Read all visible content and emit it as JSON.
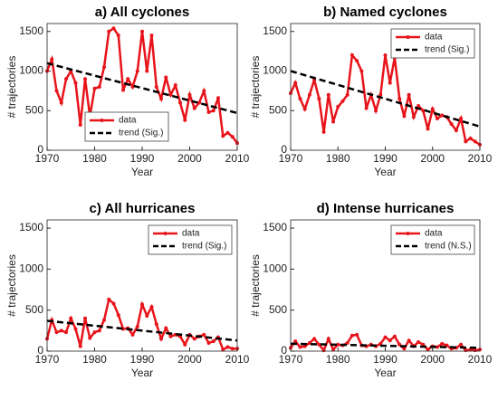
{
  "chart_data": [
    {
      "type": "line",
      "title": "a) All cyclones",
      "x_label": "Year",
      "y_label": "# trajectories",
      "x": [
        1970,
        1971,
        1972,
        1973,
        1974,
        1975,
        1976,
        1977,
        1978,
        1979,
        1980,
        1981,
        1982,
        1983,
        1984,
        1985,
        1986,
        1987,
        1988,
        1989,
        1990,
        1991,
        1992,
        1993,
        1994,
        1995,
        1996,
        1997,
        1998,
        1999,
        2000,
        2001,
        2002,
        2003,
        2004,
        2005,
        2006,
        2007,
        2008,
        2009,
        2010
      ],
      "xlim": [
        1970,
        2010
      ],
      "xticks": [
        1970,
        1980,
        1990,
        2000,
        2010
      ],
      "ylim": [
        0,
        1600
      ],
      "yticks": [
        0,
        500,
        1000,
        1500
      ],
      "legend": "lower left",
      "series": [
        {
          "name": "data",
          "color": "#e8141b",
          "values": [
            1000,
            1150,
            750,
            600,
            900,
            1000,
            850,
            320,
            900,
            430,
            780,
            800,
            1050,
            1500,
            1540,
            1450,
            760,
            900,
            800,
            1000,
            1500,
            1000,
            1450,
            800,
            650,
            920,
            700,
            820,
            600,
            380,
            700,
            530,
            600,
            750,
            480,
            500,
            660,
            180,
            220,
            170,
            90
          ]
        },
        {
          "name": "trend (Sig.)",
          "color": "#000000",
          "dashed": true,
          "x": [
            1970,
            2010
          ],
          "values": [
            1100,
            470
          ]
        }
      ]
    },
    {
      "type": "line",
      "title": "b) Named cyclones",
      "x_label": "Year",
      "y_label": "# trajectories",
      "x": [
        1970,
        1971,
        1972,
        1973,
        1974,
        1975,
        1976,
        1977,
        1978,
        1979,
        1980,
        1981,
        1982,
        1983,
        1984,
        1985,
        1986,
        1987,
        1988,
        1989,
        1990,
        1991,
        1992,
        1993,
        1994,
        1995,
        1996,
        1997,
        1998,
        1999,
        2000,
        2001,
        2002,
        2003,
        2004,
        2005,
        2006,
        2007,
        2008,
        2009,
        2010
      ],
      "xlim": [
        1970,
        2010
      ],
      "xticks": [
        1970,
        1980,
        1990,
        2000,
        2010
      ],
      "ylim": [
        0,
        1600
      ],
      "yticks": [
        0,
        500,
        1000,
        1500
      ],
      "legend": "upper right",
      "series": [
        {
          "name": "data",
          "color": "#e8141b",
          "values": [
            720,
            850,
            650,
            520,
            700,
            890,
            650,
            230,
            700,
            360,
            550,
            620,
            700,
            1200,
            1130,
            1000,
            530,
            700,
            500,
            700,
            1200,
            850,
            1170,
            650,
            430,
            700,
            420,
            560,
            500,
            270,
            520,
            400,
            440,
            420,
            330,
            250,
            400,
            110,
            150,
            110,
            70
          ]
        },
        {
          "name": "trend (Sig.)",
          "color": "#000000",
          "dashed": true,
          "x": [
            1970,
            2010
          ],
          "values": [
            1000,
            300
          ]
        }
      ]
    },
    {
      "type": "line",
      "title": "c) All hurricanes",
      "x_label": "Year",
      "y_label": "# trajectories",
      "x": [
        1970,
        1971,
        1972,
        1973,
        1974,
        1975,
        1976,
        1977,
        1978,
        1979,
        1980,
        1981,
        1982,
        1983,
        1984,
        1985,
        1986,
        1987,
        1988,
        1989,
        1990,
        1991,
        1992,
        1993,
        1994,
        1995,
        1996,
        1997,
        1998,
        1999,
        2000,
        2001,
        2002,
        2003,
        2004,
        2005,
        2006,
        2007,
        2008,
        2009,
        2010
      ],
      "xlim": [
        1970,
        2010
      ],
      "xticks": [
        1970,
        1980,
        1990,
        2000,
        2010
      ],
      "ylim": [
        0,
        1600
      ],
      "yticks": [
        0,
        500,
        1000,
        1500
      ],
      "legend": "upper right",
      "series": [
        {
          "name": "data",
          "color": "#e8141b",
          "values": [
            150,
            380,
            230,
            250,
            230,
            400,
            270,
            60,
            400,
            160,
            230,
            250,
            380,
            630,
            580,
            440,
            270,
            280,
            200,
            300,
            570,
            430,
            540,
            330,
            150,
            280,
            180,
            200,
            180,
            80,
            200,
            150,
            180,
            200,
            100,
            120,
            170,
            20,
            50,
            30,
            30
          ]
        },
        {
          "name": "trend (Sig.)",
          "color": "#000000",
          "dashed": true,
          "x": [
            1970,
            2010
          ],
          "values": [
            370,
            130
          ]
        }
      ]
    },
    {
      "type": "line",
      "title": "d) Intense hurricanes",
      "x_label": "Year",
      "y_label": "# trajectories",
      "x": [
        1970,
        1971,
        1972,
        1973,
        1974,
        1975,
        1976,
        1977,
        1978,
        1979,
        1980,
        1981,
        1982,
        1983,
        1984,
        1985,
        1986,
        1987,
        1988,
        1989,
        1990,
        1991,
        1992,
        1993,
        1994,
        1995,
        1996,
        1997,
        1998,
        1999,
        2000,
        2001,
        2002,
        2003,
        2004,
        2005,
        2006,
        2007,
        2008,
        2009,
        2010
      ],
      "xlim": [
        1970,
        2010
      ],
      "xticks": [
        1970,
        1980,
        1990,
        2000,
        2010
      ],
      "ylim": [
        0,
        1600
      ],
      "yticks": [
        0,
        500,
        1000,
        1500
      ],
      "legend": "upper right",
      "series": [
        {
          "name": "data",
          "color": "#e8141b",
          "values": [
            40,
            120,
            50,
            60,
            100,
            150,
            80,
            10,
            150,
            20,
            80,
            70,
            100,
            190,
            200,
            70,
            60,
            80,
            60,
            90,
            170,
            130,
            180,
            80,
            30,
            130,
            60,
            110,
            80,
            20,
            60,
            50,
            90,
            70,
            30,
            40,
            80,
            10,
            20,
            10,
            20
          ]
        },
        {
          "name": "trend (N.S.)",
          "color": "#000000",
          "dashed": true,
          "x": [
            1970,
            2010
          ],
          "values": [
            90,
            40
          ]
        }
      ]
    }
  ]
}
